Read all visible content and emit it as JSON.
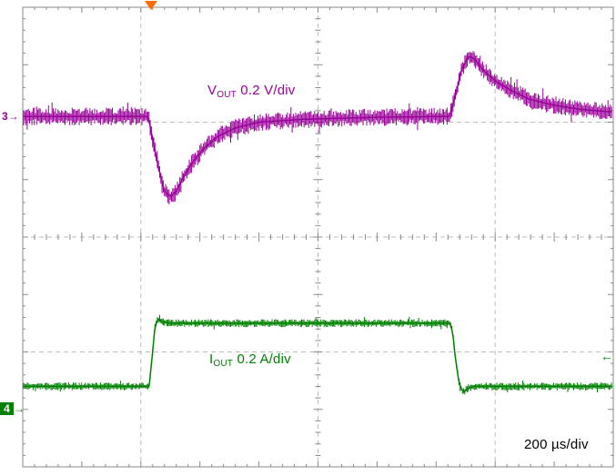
{
  "labels": {
    "vout_symbol": "V",
    "vout_subscript": "OUT",
    "vout_scale": " 0.2 V/div",
    "iout_symbol": "I",
    "iout_subscript": "OUT",
    "iout_scale": " 0.2 A/div",
    "timebase": "200 µs/div"
  },
  "markers": {
    "ch3_number": "3",
    "ch3_arrow": "→",
    "ch4_number": "4",
    "ch4_arrow": "→",
    "right_arrow": "←"
  },
  "colors": {
    "vout": "#990099",
    "iout": "#008000",
    "trigger": "#ff6a00",
    "graticule": "#8a8a8a"
  },
  "chart_data": {
    "type": "line",
    "title": "",
    "x_axis": {
      "unit": "µs",
      "per_div": 200,
      "divisions": 10,
      "range_us": [
        0,
        2000
      ]
    },
    "y_axis": {
      "divisions": 8
    },
    "legend": [
      "VOUT 0.2 V/div",
      "IOUT 0.2 A/div"
    ],
    "series": [
      {
        "name": "VOUT",
        "channel": 3,
        "color": "#990099",
        "scale_label": "0.2 V/div",
        "units_per_div": 0.2,
        "baseline_div_from_top": 1.9,
        "noise_half_div": 0.155,
        "points_t_us_v": [
          [
            0,
            0
          ],
          [
            425,
            0
          ],
          [
            440,
            -0.08
          ],
          [
            460,
            -0.18
          ],
          [
            480,
            -0.26
          ],
          [
            500,
            -0.28
          ],
          [
            520,
            -0.26
          ],
          [
            545,
            -0.21
          ],
          [
            575,
            -0.16
          ],
          [
            615,
            -0.11
          ],
          [
            660,
            -0.07
          ],
          [
            720,
            -0.04
          ],
          [
            800,
            -0.02
          ],
          [
            950,
            -0.01
          ],
          [
            1200,
            -0.003
          ],
          [
            1445,
            0
          ],
          [
            1465,
            0.07
          ],
          [
            1485,
            0.16
          ],
          [
            1510,
            0.21
          ],
          [
            1530,
            0.2
          ],
          [
            1560,
            0.16
          ],
          [
            1605,
            0.12
          ],
          [
            1655,
            0.09
          ],
          [
            1715,
            0.06
          ],
          [
            1795,
            0.04
          ],
          [
            1885,
            0.025
          ],
          [
            2000,
            0.015
          ]
        ]
      },
      {
        "name": "IOUT",
        "channel": 4,
        "color": "#008000",
        "scale_label": "0.2 A/div",
        "units_per_div": 0.2,
        "baseline_div_from_top": 6.6,
        "noise_half_div": 0.07,
        "points_t_us_v": [
          [
            0,
            0
          ],
          [
            428,
            0
          ],
          [
            438,
            0.1
          ],
          [
            448,
            0.21
          ],
          [
            458,
            0.235
          ],
          [
            472,
            0.225
          ],
          [
            500,
            0.22
          ],
          [
            1445,
            0.22
          ],
          [
            1455,
            0.2
          ],
          [
            1465,
            0.1
          ],
          [
            1478,
            0.01
          ],
          [
            1492,
            -0.02
          ],
          [
            1510,
            -0.005
          ],
          [
            1530,
            0
          ],
          [
            2000,
            0
          ]
        ]
      }
    ]
  }
}
